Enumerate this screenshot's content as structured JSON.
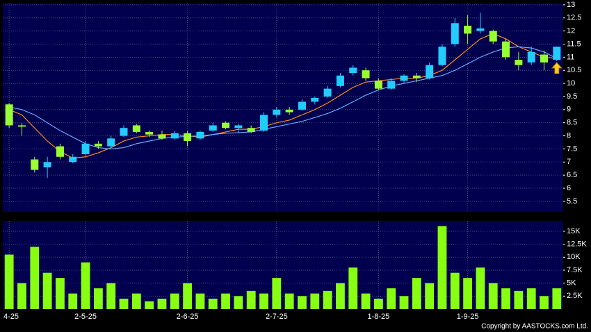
{
  "chart_data": [
    {
      "type": "candlestick",
      "categories": [
        "4-25",
        null,
        null,
        null,
        null,
        null,
        "2-5-25",
        null,
        null,
        null,
        null,
        null,
        null,
        null,
        "2-6-25",
        null,
        null,
        null,
        null,
        null,
        null,
        "2-7-25",
        null,
        null,
        null,
        null,
        null,
        null,
        null,
        "1-8-25",
        null,
        null,
        null,
        null,
        null,
        null,
        "1-9-25",
        null,
        null,
        null,
        null,
        null,
        null,
        null
      ],
      "open": [
        9.2,
        8.4,
        7.1,
        6.8,
        7.6,
        7.0,
        7.3,
        7.7,
        7.6,
        8.0,
        8.4,
        8.15,
        8.05,
        7.9,
        8.1,
        7.9,
        8.2,
        8.5,
        8.3,
        8.3,
        8.2,
        8.8,
        9.0,
        9.0,
        9.3,
        9.5,
        9.9,
        10.4,
        10.5,
        10.1,
        9.8,
        10.1,
        10.3,
        10.2,
        10.7,
        11.5,
        12.2,
        12.0,
        12.0,
        11.6,
        10.9,
        10.8,
        11.1,
        10.9
      ],
      "high": [
        9.25,
        8.5,
        7.2,
        7.2,
        7.7,
        7.3,
        7.8,
        7.8,
        8.0,
        8.4,
        8.45,
        8.2,
        8.2,
        8.2,
        8.2,
        8.2,
        8.5,
        8.55,
        8.45,
        8.4,
        8.9,
        9.1,
        9.1,
        9.4,
        9.5,
        9.9,
        10.4,
        10.7,
        10.6,
        10.2,
        10.2,
        10.35,
        10.4,
        10.8,
        11.5,
        12.5,
        12.6,
        12.7,
        12.05,
        11.7,
        11.2,
        11.4,
        11.25,
        11.4
      ],
      "low": [
        8.3,
        8.0,
        6.6,
        6.4,
        7.1,
        6.95,
        7.25,
        7.5,
        7.55,
        7.95,
        8.1,
        7.95,
        7.85,
        7.85,
        7.6,
        7.85,
        8.15,
        8.25,
        8.1,
        8.1,
        8.15,
        8.7,
        8.8,
        8.95,
        9.2,
        9.45,
        9.85,
        10.3,
        10.1,
        9.75,
        9.75,
        10.0,
        10.05,
        10.15,
        10.65,
        11.4,
        11.5,
        11.9,
        11.5,
        10.9,
        10.5,
        10.7,
        10.5,
        10.85
      ],
      "close": [
        8.4,
        8.35,
        6.7,
        7.0,
        7.2,
        7.2,
        7.7,
        7.6,
        7.9,
        8.3,
        8.15,
        8.05,
        7.9,
        8.1,
        7.8,
        8.15,
        8.4,
        8.3,
        8.4,
        8.15,
        8.8,
        9.0,
        8.9,
        9.3,
        9.45,
        9.8,
        10.3,
        10.6,
        10.2,
        9.8,
        10.1,
        10.3,
        10.2,
        10.7,
        11.4,
        12.3,
        11.9,
        12.1,
        11.6,
        11.0,
        10.7,
        11.2,
        10.8,
        11.4
      ],
      "up_color": "#22ccff",
      "down_color": "#99ff33",
      "ma_lines": [
        {
          "color": "#ff8c1a",
          "values": [
            9.0,
            8.8,
            8.3,
            7.8,
            7.4,
            7.15,
            7.2,
            7.35,
            7.55,
            7.8,
            7.95,
            8.0,
            8.05,
            8.05,
            8.0,
            7.95,
            8.05,
            8.15,
            8.25,
            8.25,
            8.35,
            8.5,
            8.6,
            8.8,
            9.0,
            9.25,
            9.55,
            9.85,
            10.05,
            10.1,
            10.15,
            10.2,
            10.2,
            10.3,
            10.5,
            10.9,
            11.3,
            11.7,
            11.9,
            11.7,
            11.4,
            11.2,
            11.0,
            10.95
          ]
        },
        {
          "color": "#66aaff",
          "values": [
            9.1,
            9.0,
            8.8,
            8.5,
            8.2,
            7.95,
            7.7,
            7.55,
            7.5,
            7.55,
            7.7,
            7.8,
            7.9,
            7.95,
            7.98,
            8.0,
            8.05,
            8.1,
            8.12,
            8.15,
            8.25,
            8.35,
            8.45,
            8.55,
            8.7,
            8.85,
            9.05,
            9.3,
            9.55,
            9.75,
            9.9,
            10.0,
            10.1,
            10.2,
            10.3,
            10.5,
            10.75,
            11.0,
            11.2,
            11.35,
            11.4,
            11.35,
            11.2,
            10.95
          ]
        }
      ],
      "ylim": [
        5.1,
        13.05
      ],
      "yticks": [
        5.5,
        6,
        6.5,
        7,
        7.5,
        8,
        8.5,
        9,
        9.5,
        10,
        10.5,
        11,
        11.5,
        12,
        12.5,
        13
      ],
      "grid": true
    },
    {
      "type": "bar",
      "values": [
        10500,
        5000,
        12000,
        7000,
        6000,
        3000,
        9000,
        4000,
        5000,
        2000,
        3000,
        1500,
        2000,
        3000,
        5000,
        3000,
        2000,
        3000,
        2500,
        3500,
        3000,
        6000,
        3000,
        2500,
        3000,
        3500,
        5000,
        8000,
        3000,
        2000,
        4000,
        2500,
        6000,
        5000,
        16000,
        7000,
        6000,
        8000,
        5000,
        4000,
        3500,
        4000,
        2500,
        4000
      ],
      "color": "#88ff11",
      "ylim": [
        0,
        17000
      ],
      "yticks": [
        {
          "value": 2500,
          "label": "2.5K"
        },
        {
          "value": 5000,
          "label": "5K"
        },
        {
          "value": 7500,
          "label": "7.5K"
        },
        {
          "value": 10000,
          "label": "10K"
        },
        {
          "value": 12500,
          "label": "12.5K"
        },
        {
          "value": 15000,
          "label": "15K"
        }
      ],
      "grid": true
    }
  ],
  "footer": "Copyright by AASTOCKS.com Ltd."
}
